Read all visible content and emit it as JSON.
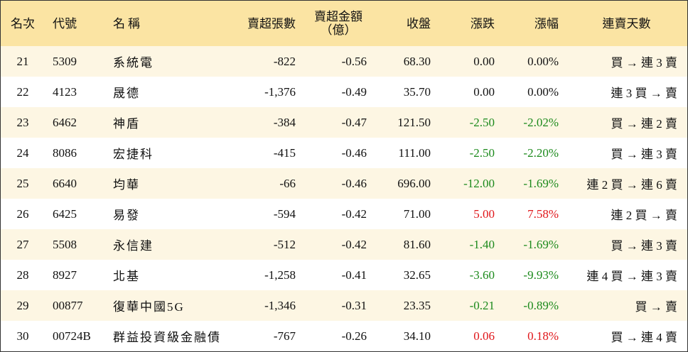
{
  "table": {
    "header": [
      "名次",
      "代號",
      "名稱",
      "賣超張數",
      "賣超金額\n（億）",
      "收盤",
      "漲跌",
      "漲幅",
      "連賣天數"
    ],
    "rows": [
      [
        "21",
        "5309",
        "系統電",
        "-822",
        "-0.56",
        "68.30",
        "0.00",
        "0.00%",
        "買 → 連 3 賣"
      ],
      [
        "22",
        "4123",
        "晟德",
        "-1,376",
        "-0.49",
        "35.70",
        "0.00",
        "0.00%",
        "連 3 買 → 賣"
      ],
      [
        "23",
        "6462",
        "神盾",
        "-384",
        "-0.47",
        "121.50",
        "-2.50",
        "-2.02%",
        "買 → 連 2 賣"
      ],
      [
        "24",
        "8086",
        "宏捷科",
        "-415",
        "-0.46",
        "111.00",
        "-2.50",
        "-2.20%",
        "買 → 連 3 賣"
      ],
      [
        "25",
        "6640",
        "均華",
        "-66",
        "-0.46",
        "696.00",
        "-12.00",
        "-1.69%",
        "連 2 買 → 連 6 賣"
      ],
      [
        "26",
        "6425",
        "易發",
        "-594",
        "-0.42",
        "71.00",
        "5.00",
        "7.58%",
        "連 2 買 → 賣"
      ],
      [
        "27",
        "5508",
        "永信建",
        "-512",
        "-0.42",
        "81.60",
        "-1.40",
        "-1.69%",
        "買 → 連 3 賣"
      ],
      [
        "28",
        "8927",
        "北基",
        "-1,258",
        "-0.41",
        "32.65",
        "-3.60",
        "-9.93%",
        "連 4 買 → 連 3 賣"
      ],
      [
        "29",
        "00877",
        "復華中國5G",
        "-1,346",
        "-0.31",
        "23.35",
        "-0.21",
        "-0.89%",
        "買 → 賣"
      ],
      [
        "30",
        "00724B",
        "群益投資級金融債",
        "-767",
        "-0.26",
        "34.10",
        "0.06",
        "0.18%",
        "買 → 連 4 賣"
      ]
    ]
  }
}
